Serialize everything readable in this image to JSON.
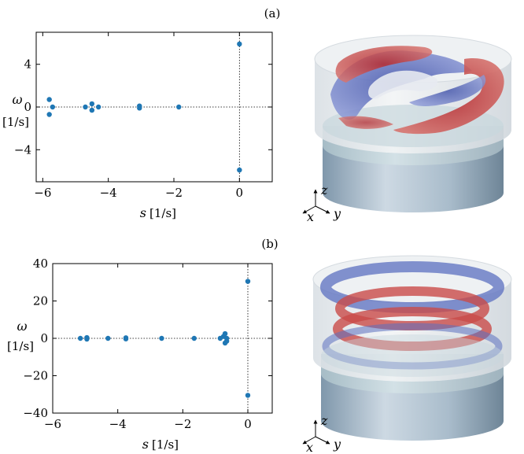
{
  "panels": [
    {
      "label": "(a)",
      "ylabel_sym": "ω",
      "ylabel_unit": "[1/s]",
      "xlabel_sym": "s",
      "xlabel_unit": "[1/s]"
    },
    {
      "label": "(b)",
      "ylabel_sym": "ω",
      "ylabel_unit": "[1/s]",
      "xlabel_sym": "s",
      "xlabel_unit": "[1/s]"
    }
  ],
  "axes_triad": {
    "z": "z",
    "x": "x",
    "y": "y"
  },
  "colors": {
    "marker": "#1f77b4",
    "positive": "#c94b48",
    "negative": "#5b6fc0"
  },
  "chart_data": [
    {
      "type": "scatter",
      "title": "",
      "xlabel": "s [1/s]",
      "ylabel": "ω [1/s]",
      "xlim": [
        -6.2,
        1
      ],
      "ylim": [
        -7,
        7
      ],
      "xticks": [
        -6,
        -4,
        -2,
        0
      ],
      "yticks": [
        -4,
        0,
        4
      ],
      "x": [
        -5.8,
        -5.8,
        -5.7,
        -4.7,
        -4.5,
        -4.5,
        -4.3,
        -3.05,
        -3.05,
        -1.85,
        0.0,
        0.0
      ],
      "y": [
        0.7,
        -0.7,
        0.0,
        0.0,
        0.3,
        -0.3,
        0.0,
        0.1,
        -0.1,
        0.0,
        5.9,
        -5.9
      ]
    },
    {
      "type": "scatter",
      "title": "",
      "xlabel": "s [1/s]",
      "ylabel": "ω [1/s]",
      "xlim": [
        -6,
        0.75
      ],
      "ylim": [
        -40,
        40
      ],
      "xticks": [
        -6,
        -4,
        -2,
        0
      ],
      "yticks": [
        -40,
        -20,
        0,
        20,
        40
      ],
      "x": [
        -5.15,
        -4.95,
        -4.95,
        -4.3,
        -3.75,
        -3.75,
        -2.65,
        -1.65,
        -0.85,
        -0.75,
        -0.7,
        -0.7,
        -0.65,
        -0.65,
        0.0,
        0.0
      ],
      "y": [
        0.0,
        0.4,
        -0.4,
        0.0,
        0.3,
        -0.3,
        0.0,
        0.0,
        0.0,
        1.0,
        2.5,
        -2.5,
        0.0,
        -1.5,
        30.5,
        -30.5
      ]
    }
  ]
}
